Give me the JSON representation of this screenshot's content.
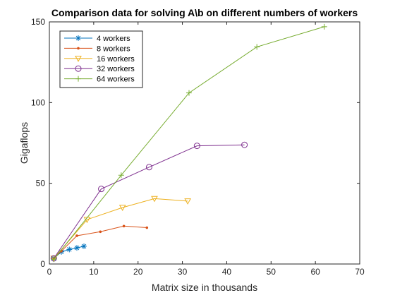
{
  "chart_data": {
    "type": "line",
    "title": "Comparison data for solving A\\b on different numbers of workers",
    "xlabel": "Matrix size in thousands",
    "ylabel": "Gigaflops",
    "xlim": [
      0,
      70
    ],
    "ylim": [
      0,
      150
    ],
    "xticks": [
      "0",
      "10",
      "20",
      "30",
      "40",
      "50",
      "60",
      "70"
    ],
    "yticks": [
      "0",
      "50",
      "100",
      "150"
    ],
    "grid": false,
    "legend_position": "top-left",
    "series": [
      {
        "name": "4 workers",
        "color": "#0072BD",
        "marker": "asterisk",
        "x": [
          1.0,
          2.7,
          4.5,
          6.2,
          7.8
        ],
        "y": [
          3.5,
          7.5,
          9.0,
          10.0,
          11.0
        ]
      },
      {
        "name": "8 workers",
        "color": "#D95319",
        "marker": "dot",
        "x": [
          1.0,
          2.7,
          6.2,
          11.5,
          16.8,
          22.0
        ],
        "y": [
          3.5,
          8.0,
          17.5,
          20.0,
          23.5,
          22.5
        ]
      },
      {
        "name": "16 workers",
        "color": "#EDB120",
        "marker": "triangle-down",
        "x": [
          1.0,
          8.5,
          16.5,
          23.7,
          31.2
        ],
        "y": [
          3.5,
          27.5,
          35.0,
          40.5,
          39.0
        ]
      },
      {
        "name": "32 workers",
        "color": "#7E2F8E",
        "marker": "circle",
        "x": [
          1.0,
          11.7,
          22.5,
          33.3,
          44.0
        ],
        "y": [
          3.5,
          46.5,
          60.0,
          73.2,
          73.8
        ]
      },
      {
        "name": "64 workers",
        "color": "#77AC30",
        "marker": "plus",
        "x": [
          1.0,
          16.2,
          31.5,
          46.8,
          62.0
        ],
        "y": [
          3.0,
          55.0,
          106.0,
          134.5,
          147.0
        ]
      }
    ]
  }
}
